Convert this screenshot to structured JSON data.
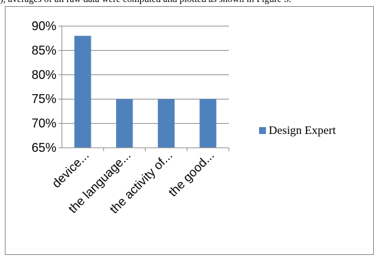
{
  "caption": {
    "text": "), averages of all raw data were computed and plotted as shown in Figure 5."
  },
  "chart_data": {
    "type": "bar",
    "categories": [
      "device...",
      "the language...",
      "the activity of...",
      "the good..."
    ],
    "series": [
      {
        "name": "Design Expert",
        "values": [
          0.88,
          0.75,
          0.75,
          0.75
        ],
        "color": "#4f81bd"
      }
    ],
    "ylim": [
      0.65,
      0.9
    ],
    "yticks": [
      0.65,
      0.7,
      0.75,
      0.8,
      0.85,
      0.9
    ],
    "ytick_labels": [
      "65%",
      "70%",
      "75%",
      "80%",
      "85%",
      "90%"
    ],
    "grid": true,
    "legend": "right"
  },
  "colors": {
    "bar": "#4f81bd",
    "grid": "#868686",
    "axis": "#868686"
  }
}
